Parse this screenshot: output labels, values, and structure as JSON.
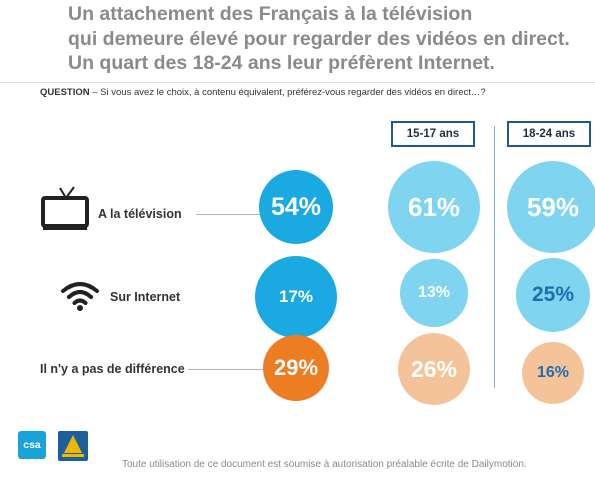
{
  "title": {
    "line1": "Un attachement des Français à la télévision",
    "line2": "qui demeure élevé pour regarder des vidéos en direct.",
    "line3": "Un quart des 18-24 ans leur préfèrent Internet."
  },
  "question": {
    "prefix": "QUESTION",
    "text": " – Si vous avez le choix, à contenu équivalent, préférez-vous regarder des vidéos en direct…?"
  },
  "chart_data": {
    "type": "bubble",
    "categories": [
      "A la télévision",
      "Sur Internet",
      "Il n'y a pas de différence"
    ],
    "unit": "%",
    "series": [
      {
        "name": "",
        "values": [
          54,
          17,
          29
        ],
        "labels": [
          "54%",
          "17%",
          "29%"
        ]
      },
      {
        "name": "15-17 ans",
        "values": [
          61,
          13,
          26
        ],
        "labels": [
          "61%",
          "13%",
          "26%"
        ]
      },
      {
        "name": "18-24 ans",
        "values": [
          59,
          25,
          16
        ],
        "labels": [
          "59%",
          "25%",
          "16%"
        ]
      }
    ]
  },
  "colors": {
    "tv": "#1aa9e0",
    "internet": "#1aa9e0",
    "nodiff": "#ed7d22",
    "tv_light": "#7fd4f0",
    "internet_light": "#7fd4f0",
    "nodiff_light": "#f4c39a",
    "highlight_text": "#1f6db0"
  },
  "icons": {
    "tv": "tv-icon",
    "internet": "wifi-icon"
  },
  "footer": "Toute utilisation de ce document est soumise à autorisation préalable écrite de Dailymotion.",
  "logos": {
    "csa": "csa",
    "dailymotion": "Dailymotion"
  }
}
